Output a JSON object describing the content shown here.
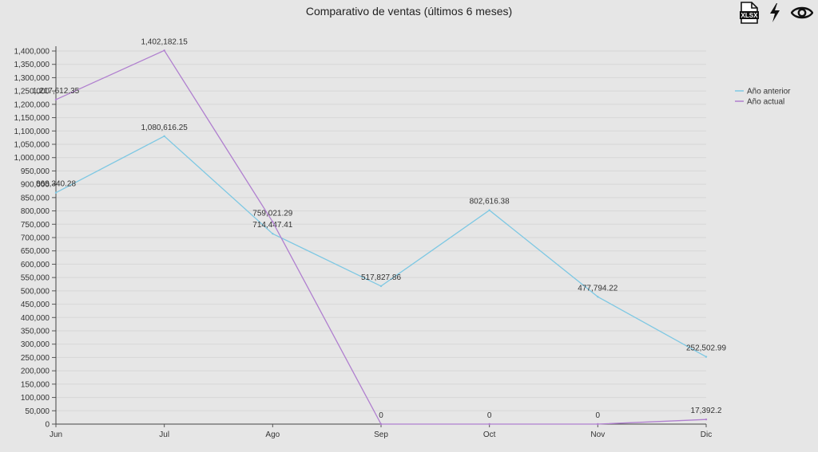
{
  "page": {
    "title": "Comparativo de ventas (últimos 6 meses)"
  },
  "toolbar": {
    "xlsx_label": "XLSX",
    "icons": [
      "xlsx-file-icon",
      "lightning-icon",
      "eye-icon"
    ]
  },
  "chart_data": {
    "type": "line",
    "title": "Comparativo de ventas (últimos 6 meses)",
    "xlabel": "",
    "ylabel": "",
    "categories": [
      "Jun",
      "Jul",
      "Ago",
      "Sep",
      "Oct",
      "Nov",
      "Dic"
    ],
    "ylim": [
      0,
      1400000
    ],
    "ytick_step": 50000,
    "grid": true,
    "legend_position": "right",
    "series": [
      {
        "name": "Año anterior",
        "color": "#7ec8e3",
        "values": [
          868340.28,
          1080616.25,
          714447.41,
          517827.86,
          802616.38,
          477794.22,
          252502.99
        ],
        "labels": [
          "868,340.28",
          "1,080,616.25",
          "714,447.41",
          "517,827.86",
          "802,616.38",
          "477,794.22",
          "252,502.99"
        ]
      },
      {
        "name": "Año actual",
        "color": "#b07fcf",
        "values": [
          1217612.35,
          1402182.15,
          759021.29,
          0,
          0,
          0,
          17392.2
        ],
        "labels": [
          "1,217,612.35",
          "1,402,182.15",
          "759,021.29",
          "0",
          "0",
          "0",
          "17,392.2"
        ]
      }
    ]
  }
}
